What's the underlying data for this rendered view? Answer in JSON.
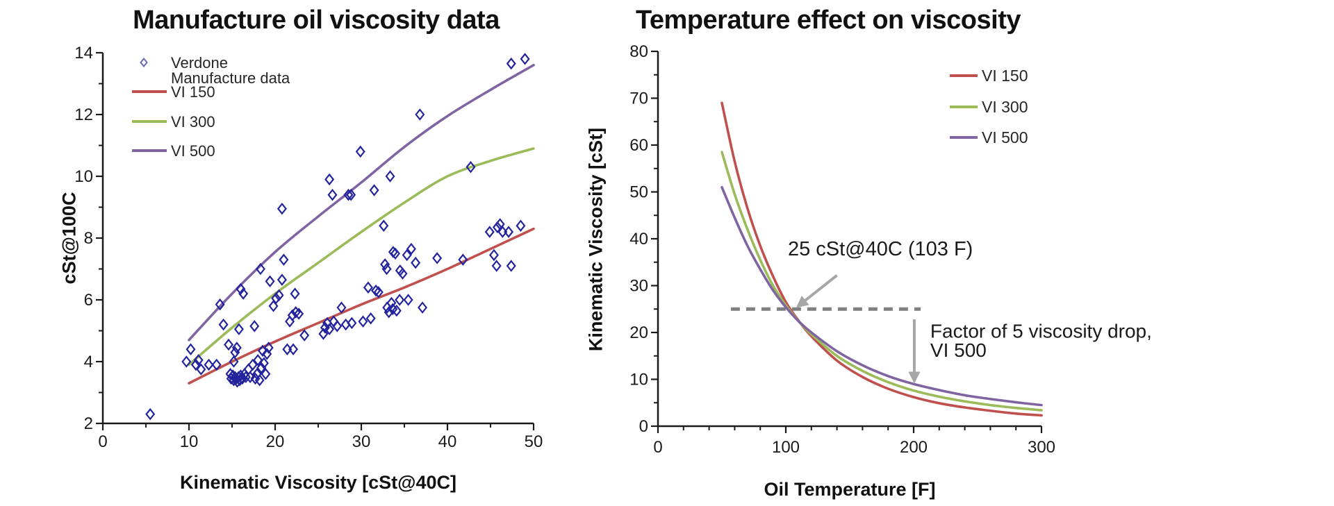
{
  "page": {
    "background": "#ffffff"
  },
  "colors": {
    "vi150": "#C0504D",
    "vi300": "#9BBB59",
    "vi500": "#8064A2",
    "scatter_marker": "#23239E",
    "annotation_gray": "#A6A6A6",
    "dashed_gray": "#808080",
    "axis": "#1a1a1a"
  },
  "chart_data": [
    {
      "type": "scatter",
      "title": "Manufacture oil viscosity data",
      "xlabel": "Kinematic Viscosity [cSt@40C]",
      "ylabel": "cSt@100C",
      "xlim": [
        0,
        50
      ],
      "ylim": [
        2,
        14
      ],
      "x_ticks": [
        0,
        10,
        20,
        30,
        40,
        50
      ],
      "x_minor_step": 5,
      "y_ticks": [
        2,
        4,
        6,
        8,
        10,
        12,
        14
      ],
      "y_minor_step": 1,
      "grid": false,
      "legend_position": "top-left-inside",
      "scatter": {
        "name": "Verdone Manufacture data",
        "legend_lines": [
          "Verdone",
          "Manufacture data"
        ],
        "marker": "open-diamond",
        "color": "#23239E",
        "points": [
          [
            5.5,
            2.3
          ],
          [
            9.7,
            4.0
          ],
          [
            10.2,
            4.4
          ],
          [
            10.8,
            3.9
          ],
          [
            11.1,
            4.05
          ],
          [
            11.4,
            3.75
          ],
          [
            12.3,
            3.9
          ],
          [
            13.2,
            3.9
          ],
          [
            13.6,
            5.85
          ],
          [
            14.0,
            5.2
          ],
          [
            14.6,
            4.55
          ],
          [
            14.8,
            3.6
          ],
          [
            14.9,
            3.45
          ],
          [
            15.1,
            3.55
          ],
          [
            15.2,
            3.4
          ],
          [
            15.35,
            3.5
          ],
          [
            15.5,
            3.45
          ],
          [
            15.6,
            3.35
          ],
          [
            15.75,
            3.5
          ],
          [
            15.9,
            3.4
          ],
          [
            16.0,
            3.55
          ],
          [
            16.2,
            3.45
          ],
          [
            16.45,
            3.6
          ],
          [
            16.6,
            3.5
          ],
          [
            15.2,
            4.0
          ],
          [
            15.35,
            4.3
          ],
          [
            15.55,
            4.45
          ],
          [
            15.8,
            5.05
          ],
          [
            16.0,
            6.35
          ],
          [
            16.3,
            6.2
          ],
          [
            16.9,
            3.75
          ],
          [
            17.1,
            3.5
          ],
          [
            17.4,
            3.9
          ],
          [
            17.7,
            3.45
          ],
          [
            17.9,
            3.6
          ],
          [
            18.0,
            4.05
          ],
          [
            18.2,
            3.4
          ],
          [
            18.4,
            3.8
          ],
          [
            18.55,
            4.35
          ],
          [
            18.7,
            3.95
          ],
          [
            18.9,
            3.6
          ],
          [
            19.05,
            4.25
          ],
          [
            19.25,
            4.45
          ],
          [
            17.6,
            5.15
          ],
          [
            18.3,
            7.0
          ],
          [
            19.4,
            6.6
          ],
          [
            19.8,
            5.8
          ],
          [
            20.1,
            6.05
          ],
          [
            20.45,
            6.15
          ],
          [
            20.8,
            6.65
          ],
          [
            21.0,
            7.3
          ],
          [
            20.8,
            8.95
          ],
          [
            21.4,
            4.4
          ],
          [
            22.1,
            4.4
          ],
          [
            21.7,
            5.3
          ],
          [
            22.0,
            5.5
          ],
          [
            22.4,
            5.6
          ],
          [
            22.75,
            5.55
          ],
          [
            22.3,
            6.2
          ],
          [
            23.4,
            4.85
          ],
          [
            25.6,
            4.9
          ],
          [
            25.8,
            5.1
          ],
          [
            26.05,
            5.25
          ],
          [
            26.3,
            5.05
          ],
          [
            26.8,
            5.3
          ],
          [
            27.2,
            5.15
          ],
          [
            27.7,
            5.75
          ],
          [
            28.2,
            5.2
          ],
          [
            28.9,
            5.25
          ],
          [
            26.3,
            9.9
          ],
          [
            26.65,
            9.4
          ],
          [
            28.5,
            9.4
          ],
          [
            28.8,
            9.4
          ],
          [
            29.9,
            10.8
          ],
          [
            30.2,
            5.3
          ],
          [
            30.8,
            6.4
          ],
          [
            31.1,
            5.4
          ],
          [
            31.5,
            9.55
          ],
          [
            31.7,
            6.3
          ],
          [
            32.0,
            6.25
          ],
          [
            32.6,
            8.4
          ],
          [
            32.75,
            7.15
          ],
          [
            32.95,
            7.0
          ],
          [
            33.0,
            5.75
          ],
          [
            33.2,
            5.6
          ],
          [
            33.35,
            10.0
          ],
          [
            33.5,
            5.9
          ],
          [
            33.65,
            5.7
          ],
          [
            33.7,
            7.55
          ],
          [
            33.95,
            7.5
          ],
          [
            34.1,
            5.65
          ],
          [
            34.45,
            6.0
          ],
          [
            34.5,
            6.95
          ],
          [
            34.8,
            6.85
          ],
          [
            35.3,
            7.45
          ],
          [
            35.45,
            6.0
          ],
          [
            35.8,
            7.65
          ],
          [
            36.3,
            7.2
          ],
          [
            36.8,
            12.0
          ],
          [
            37.1,
            5.75
          ],
          [
            38.8,
            7.35
          ],
          [
            41.8,
            7.3
          ],
          [
            42.7,
            10.3
          ],
          [
            44.9,
            8.2
          ],
          [
            45.8,
            8.35
          ],
          [
            46.1,
            8.45
          ],
          [
            46.4,
            8.2
          ],
          [
            47.1,
            8.2
          ],
          [
            48.5,
            8.4
          ],
          [
            45.4,
            7.45
          ],
          [
            45.7,
            7.1
          ],
          [
            47.4,
            7.1
          ],
          [
            47.4,
            13.65
          ],
          [
            49.0,
            13.8
          ]
        ]
      },
      "series": [
        {
          "name": "VI 150",
          "color": "#C0504D",
          "points": [
            [
              10,
              3.3
            ],
            [
              15,
              4.0
            ],
            [
              20,
              4.65
            ],
            [
              25,
              5.25
            ],
            [
              30,
              5.85
            ],
            [
              35,
              6.4
            ],
            [
              40,
              7.0
            ],
            [
              45,
              7.65
            ],
            [
              50,
              8.3
            ]
          ]
        },
        {
          "name": "VI 300",
          "color": "#9BBB59",
          "points": [
            [
              10,
              3.9
            ],
            [
              15,
              5.1
            ],
            [
              20,
              6.2
            ],
            [
              25,
              7.2
            ],
            [
              30,
              8.2
            ],
            [
              35,
              9.15
            ],
            [
              40,
              10.0
            ],
            [
              45,
              10.5
            ],
            [
              50,
              10.9
            ]
          ]
        },
        {
          "name": "VI 500",
          "color": "#8064A2",
          "points": [
            [
              10,
              4.7
            ],
            [
              15,
              6.2
            ],
            [
              20,
              7.55
            ],
            [
              25,
              8.7
            ],
            [
              30,
              9.8
            ],
            [
              35,
              10.95
            ],
            [
              40,
              11.95
            ],
            [
              45,
              12.8
            ],
            [
              50,
              13.6
            ]
          ]
        }
      ]
    },
    {
      "type": "line",
      "title": "Temperature effect on viscosity",
      "xlabel": "Oil Temperature [F]",
      "ylabel": "Kinematic Viscosity [cSt]",
      "xlim": [
        0,
        300
      ],
      "ylim": [
        0,
        80
      ],
      "x_ticks": [
        0,
        100,
        200,
        300
      ],
      "x_minor_step": 20,
      "y_ticks": [
        0,
        10,
        20,
        30,
        40,
        50,
        60,
        70,
        80
      ],
      "y_minor_step": 5,
      "grid": false,
      "legend_position": "top-right-inside",
      "x": [
        50,
        60,
        70,
        80,
        90,
        100,
        110,
        120,
        140,
        160,
        180,
        200,
        220,
        240,
        260,
        280,
        300
      ],
      "series": [
        {
          "name": "VI 150",
          "color": "#C0504D",
          "values": [
            69,
            56.5,
            46.5,
            38.5,
            32,
            26.5,
            22.5,
            19.2,
            14,
            10.5,
            8,
            6.2,
            4.9,
            4.0,
            3.3,
            2.7,
            2.3
          ]
        },
        {
          "name": "VI 300",
          "color": "#9BBB59",
          "values": [
            58.5,
            49.5,
            42,
            35.5,
            30,
            25.8,
            22.4,
            19.6,
            15,
            11.8,
            9.4,
            7.6,
            6.3,
            5.3,
            4.5,
            3.9,
            3.4
          ]
        },
        {
          "name": "VI 500",
          "color": "#8064A2",
          "values": [
            51,
            44.5,
            38.5,
            33.5,
            29,
            25.4,
            22.4,
            20,
            16,
            13,
            10.7,
            9.0,
            7.7,
            6.6,
            5.8,
            5.1,
            4.5
          ]
        }
      ],
      "annotations": [
        {
          "text": "25 cSt@40C (103 F)",
          "x": 174,
          "y": 37.9,
          "anchor": "middle",
          "font_size": 29
        },
        {
          "text": "Factor of 5 viscosity drop,",
          "x": 213,
          "y": 20.4,
          "anchor": "start",
          "font_size": 28
        },
        {
          "text": "VI 500",
          "x": 213,
          "y": 16.3,
          "anchor": "start",
          "font_size": 28
        }
      ],
      "arrows": [
        {
          "x1": 140,
          "y1": 32.2,
          "x2": 109.5,
          "y2": 25.6
        },
        {
          "x1": 200.5,
          "y1": 22.8,
          "x2": 200.5,
          "y2": 9.6
        }
      ],
      "dashed_line": {
        "y": 25,
        "x1": 57,
        "x2": 205.5,
        "color": "#808080"
      }
    }
  ]
}
